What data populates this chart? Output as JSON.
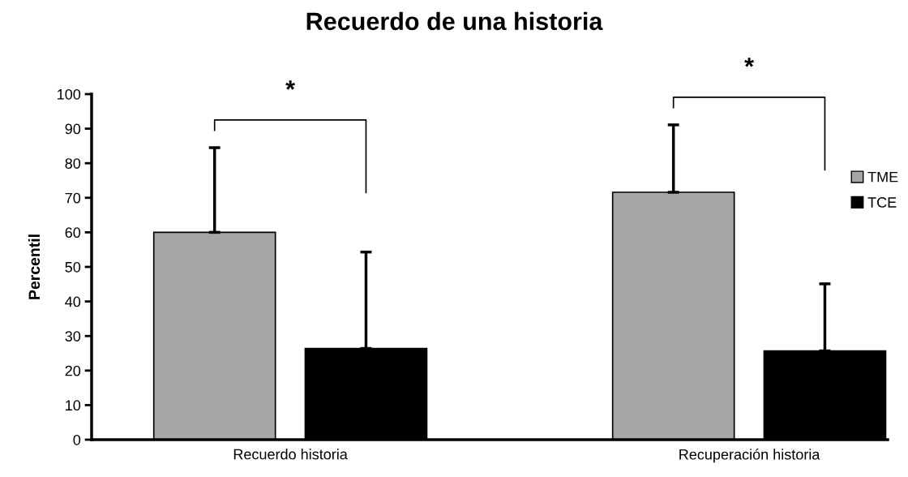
{
  "chart_data": {
    "type": "bar",
    "title": "Recuerdo de una historia",
    "ylabel": "Percentil",
    "categories": [
      "Recuerdo historia",
      "Recuperación historia"
    ],
    "series": [
      {
        "name": "TME",
        "color": "#a6a6a6",
        "values": [
          60.0,
          71.6
        ],
        "errors": [
          [
            60.0,
            84.5
          ],
          [
            71.6,
            91.1
          ]
        ]
      },
      {
        "name": "TCE",
        "color": "#000000",
        "values": [
          26.4,
          25.7
        ],
        "errors": [
          [
            26.4,
            54.3
          ],
          [
            25.7,
            45.1
          ]
        ]
      }
    ],
    "ylim": [
      0,
      100
    ],
    "yticks": [
      0,
      10,
      20,
      30,
      40,
      50,
      60,
      70,
      80,
      90,
      100
    ],
    "legend": "right",
    "grid": false,
    "annotations": [
      "*",
      "*"
    ]
  }
}
